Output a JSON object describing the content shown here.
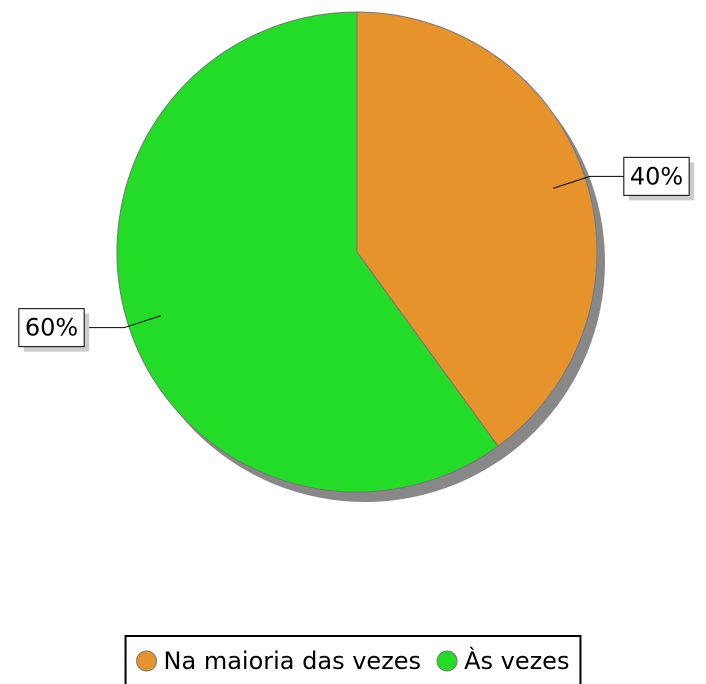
{
  "chart_data": {
    "type": "pie",
    "categories": [
      "Na maioria das vezes",
      "Às vezes"
    ],
    "values": [
      40,
      60
    ],
    "value_labels": [
      "40%",
      "60%"
    ],
    "colors": [
      "#e6932c",
      "#22dc27"
    ],
    "legend": "bottom"
  }
}
